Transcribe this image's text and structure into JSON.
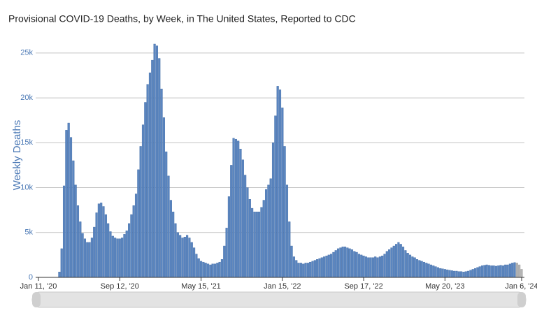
{
  "chart_data": {
    "type": "bar",
    "title": "Provisional COVID-19 Deaths, by Week, in The United States, Reported to CDC",
    "y_label": "Weekly Deaths",
    "categories": [
      "Jan 11, '20",
      null,
      null,
      null,
      null,
      null,
      null,
      null,
      null,
      null,
      null,
      null,
      null,
      null,
      null,
      null,
      null,
      null,
      null,
      null,
      null,
      null,
      null,
      null,
      null,
      null,
      null,
      null,
      null,
      null,
      null,
      null,
      null,
      null,
      null,
      "Sep 12, '20",
      null,
      null,
      null,
      null,
      null,
      null,
      null,
      null,
      null,
      null,
      null,
      null,
      null,
      null,
      null,
      null,
      null,
      null,
      null,
      null,
      null,
      null,
      null,
      null,
      null,
      null,
      null,
      null,
      null,
      null,
      null,
      null,
      null,
      null,
      "May 15, '21",
      null,
      null,
      null,
      null,
      null,
      null,
      null,
      null,
      null,
      null,
      null,
      null,
      null,
      null,
      null,
      null,
      null,
      null,
      null,
      null,
      null,
      null,
      null,
      null,
      null,
      null,
      null,
      null,
      null,
      null,
      null,
      null,
      null,
      null,
      "Jan 15, '22",
      null,
      null,
      null,
      null,
      null,
      null,
      null,
      null,
      null,
      null,
      null,
      null,
      null,
      null,
      null,
      null,
      null,
      null,
      null,
      null,
      null,
      null,
      null,
      null,
      null,
      null,
      null,
      null,
      null,
      null,
      null,
      null,
      null,
      null,
      "Sep 17, '22",
      null,
      null,
      null,
      null,
      null,
      null,
      null,
      null,
      null,
      null,
      null,
      null,
      null,
      null,
      null,
      null,
      null,
      null,
      null,
      null,
      null,
      null,
      null,
      null,
      null,
      null,
      null,
      null,
      null,
      null,
      null,
      null,
      null,
      null,
      "May 20, '23",
      null,
      null,
      null,
      null,
      null,
      null,
      null,
      null,
      null,
      null,
      null,
      null,
      null,
      null,
      null,
      null,
      null,
      null,
      null,
      null,
      null,
      null,
      null,
      null,
      null,
      null,
      null,
      null,
      null,
      null,
      null,
      null,
      "Jan 6, '24"
    ],
    "series": [
      {
        "color": "#5b86c0",
        "values": [
          0,
          0,
          0,
          0,
          0,
          0,
          0,
          0,
          0,
          600,
          3200,
          10200,
          16400,
          17200,
          15600,
          13000,
          10300,
          8000,
          6200,
          4900,
          4300,
          3900,
          3900,
          4400,
          5600,
          7200,
          8200,
          8300,
          7900,
          7000,
          6000,
          5100,
          4600,
          4400,
          4300,
          4300,
          4400,
          4800,
          5200,
          6000,
          7000,
          8000,
          9300,
          12000,
          14600,
          17000,
          19500,
          21500,
          22800,
          24200,
          26000,
          25800,
          24400,
          21000,
          17800,
          14000,
          11300,
          8600,
          7300,
          6000,
          5000,
          4700,
          4400,
          4500,
          4700,
          4400,
          3900,
          3300,
          2600,
          2100,
          1800,
          1700,
          1600,
          1500,
          1400,
          1500,
          1500,
          1600,
          1700,
          2000,
          3500,
          5500,
          9000,
          12500,
          15500,
          15400,
          15200,
          14300,
          13100,
          11400,
          10000,
          8700,
          7700,
          7300,
          7300,
          7300,
          7800,
          8600,
          9800,
          10300,
          11000,
          15000,
          18000,
          21300,
          20900,
          18900,
          14600,
          10300,
          6200,
          3500,
          2300,
          1900,
          1600,
          1600,
          1500,
          1600,
          1600,
          1700,
          1800,
          1900,
          2000,
          2100,
          2200,
          2300,
          2400,
          2500,
          2600,
          2800,
          3000,
          3200,
          3300,
          3400,
          3400,
          3300,
          3200,
          3100,
          2900,
          2800,
          2600,
          2500,
          2400,
          2300,
          2200,
          2200,
          2200,
          2300,
          2200,
          2300,
          2400,
          2600,
          2900,
          3100,
          3300,
          3500,
          3700,
          3900,
          3700,
          3400,
          3000,
          2700,
          2500,
          2300,
          2200,
          2000,
          1900,
          1800,
          1700,
          1600,
          1500,
          1400,
          1300,
          1200,
          1100,
          1000,
          950,
          900,
          850,
          800,
          750,
          700,
          700,
          650,
          650,
          600,
          650,
          700,
          800,
          900,
          1000,
          1100,
          1200,
          1300,
          1350,
          1400,
          1350,
          1300,
          1300,
          1250,
          1300,
          1350,
          1300,
          1400,
          1400,
          1500,
          1600,
          1650,
          null,
          null,
          null
        ]
      },
      {
        "color": "#b4b4b4",
        "values": [
          null,
          null,
          null,
          null,
          null,
          null,
          null,
          null,
          null,
          null,
          null,
          null,
          null,
          null,
          null,
          null,
          null,
          null,
          null,
          null,
          null,
          null,
          null,
          null,
          null,
          null,
          null,
          null,
          null,
          null,
          null,
          null,
          null,
          null,
          null,
          null,
          null,
          null,
          null,
          null,
          null,
          null,
          null,
          null,
          null,
          null,
          null,
          null,
          null,
          null,
          null,
          null,
          null,
          null,
          null,
          null,
          null,
          null,
          null,
          null,
          null,
          null,
          null,
          null,
          null,
          null,
          null,
          null,
          null,
          null,
          null,
          null,
          null,
          null,
          null,
          null,
          null,
          null,
          null,
          null,
          null,
          null,
          null,
          null,
          null,
          null,
          null,
          null,
          null,
          null,
          null,
          null,
          null,
          null,
          null,
          null,
          null,
          null,
          null,
          null,
          null,
          null,
          null,
          null,
          null,
          null,
          null,
          null,
          null,
          null,
          null,
          null,
          null,
          null,
          null,
          null,
          null,
          null,
          null,
          null,
          null,
          null,
          null,
          null,
          null,
          null,
          null,
          null,
          null,
          null,
          null,
          null,
          null,
          null,
          null,
          null,
          null,
          null,
          null,
          null,
          null,
          null,
          null,
          null,
          null,
          null,
          null,
          null,
          null,
          null,
          null,
          null,
          null,
          null,
          null,
          null,
          null,
          null,
          null,
          null,
          null,
          null,
          null,
          null,
          null,
          null,
          null,
          null,
          null,
          null,
          null,
          null,
          null,
          null,
          null,
          null,
          null,
          null,
          null,
          null,
          null,
          null,
          null,
          null,
          null,
          null,
          null,
          null,
          null,
          null,
          null,
          null,
          null,
          null,
          null,
          null,
          null,
          null,
          null,
          null,
          null,
          null,
          null,
          null,
          null,
          null,
          1600,
          1400,
          900
        ]
      }
    ],
    "ylim": [
      0,
      27400
    ],
    "yticks": [
      0,
      {
        "value": 5000,
        "label": "5k"
      },
      {
        "value": 10000,
        "label": "10k"
      },
      {
        "value": 15000,
        "label": "15k"
      },
      {
        "value": 20000,
        "label": "20k"
      },
      {
        "value": 25000,
        "label": "25k"
      }
    ],
    "grid": true
  }
}
